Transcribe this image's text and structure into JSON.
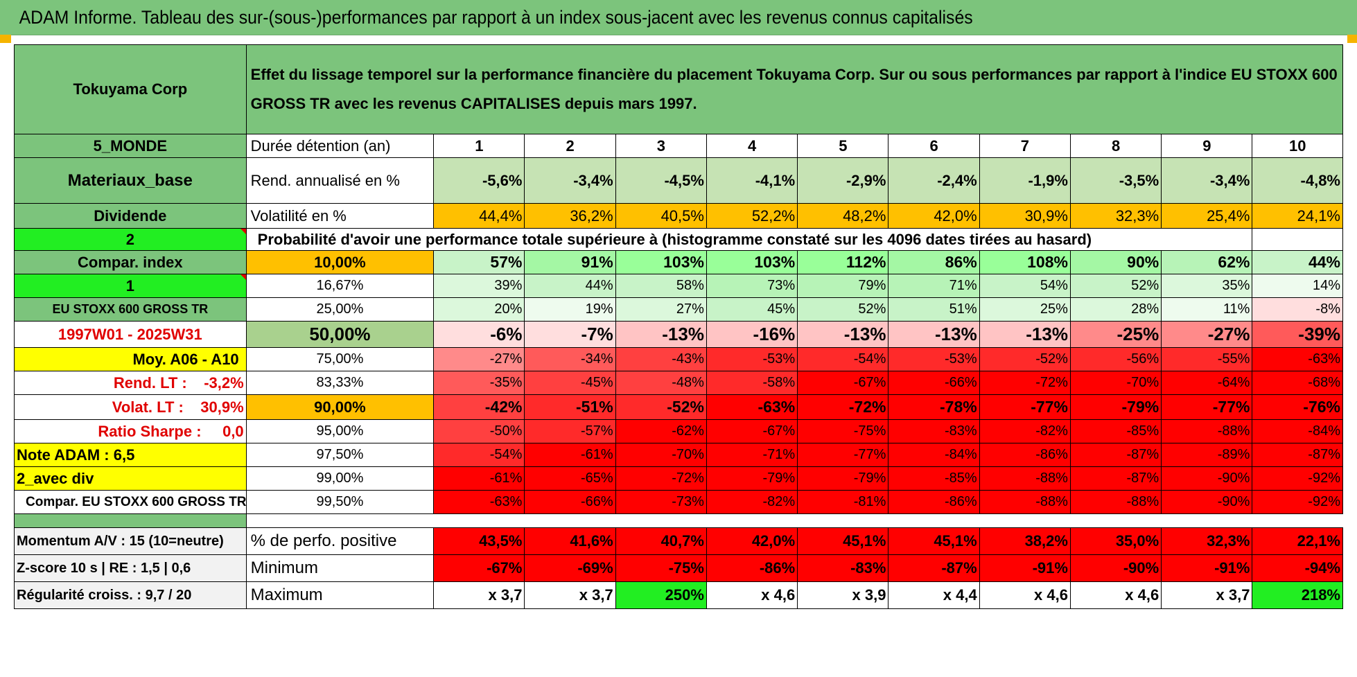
{
  "title": "ADAM Informe. Tableau des sur-(sous-)performances par rapport à un index sous-jacent avec les revenus connus capitalisés",
  "header": {
    "company": "Tokuyama Corp",
    "description": "Effet du lissage temporel sur la performance financière du placement Tokuyama Corp. Sur ou sous performances par rapport à l'indice EU STOXX 600 GROSS TR avec les revenus CAPITALISES depuis mars 1997."
  },
  "left": {
    "region": "5_MONDE",
    "sector": "Materiaux_base",
    "dividend": "Dividende",
    "code2": "2",
    "compar_index": "Compar. index",
    "code1": "1",
    "index_name": "EU STOXX 600 GROSS TR",
    "period": "1997W01 - 2025W31",
    "moy": "Moy. A06 - A10",
    "rend_lt": "Rend. LT :    -3,2%",
    "volat_lt": "Volat. LT :    30,9%",
    "sharpe": "Ratio Sharpe :     0,0",
    "note": "Note ADAM : 6,5",
    "avec_div": "2_avec div",
    "compar_eu": "Compar. EU STOXX 600 GROSS TR",
    "momentum": "Momentum A/V : 15 (10=neutre)",
    "zscore": "Z-score 10 s | RE : 1,5 | 0,6",
    "regularite": "Régularité croiss. : 9,7 / 20"
  },
  "metrics": {
    "duree": "Durée détention (an)",
    "rend": "Rend. annualisé en %",
    "volat": "Volatilité en %",
    "prob_title": "Probabilité d'avoir une performance totale supérieure à (histogramme constaté sur les 4096 dates tirées au hasard)",
    "perf_pos": "% de perfo. positive",
    "minimum": "Minimum",
    "maximum": "Maximum"
  },
  "years": [
    "1",
    "2",
    "3",
    "4",
    "5",
    "6",
    "7",
    "8",
    "9",
    "10"
  ],
  "rend": [
    "-5,6%",
    "-3,4%",
    "-4,5%",
    "-4,1%",
    "-2,9%",
    "-2,4%",
    "-1,9%",
    "-3,5%",
    "-3,4%",
    "-4,8%"
  ],
  "volat": [
    "44,4%",
    "36,2%",
    "40,5%",
    "52,2%",
    "48,2%",
    "42,0%",
    "30,9%",
    "32,3%",
    "25,4%",
    "24,1%"
  ],
  "thresholds": [
    "10,00%",
    "16,67%",
    "25,00%",
    "50,00%",
    "75,00%",
    "83,33%",
    "90,00%",
    "95,00%",
    "97,50%",
    "99,00%",
    "99,50%"
  ],
  "prob_rows": [
    [
      "57%",
      "91%",
      "103%",
      "103%",
      "112%",
      "86%",
      "108%",
      "90%",
      "62%",
      "44%"
    ],
    [
      "39%",
      "44%",
      "58%",
      "73%",
      "79%",
      "71%",
      "54%",
      "52%",
      "35%",
      "14%"
    ],
    [
      "20%",
      "19%",
      "27%",
      "45%",
      "52%",
      "51%",
      "25%",
      "28%",
      "11%",
      "-8%"
    ],
    [
      "-6%",
      "-7%",
      "-13%",
      "-16%",
      "-13%",
      "-13%",
      "-13%",
      "-25%",
      "-27%",
      "-39%"
    ],
    [
      "-27%",
      "-34%",
      "-43%",
      "-53%",
      "-54%",
      "-53%",
      "-52%",
      "-56%",
      "-55%",
      "-63%"
    ],
    [
      "-35%",
      "-45%",
      "-48%",
      "-58%",
      "-67%",
      "-66%",
      "-72%",
      "-70%",
      "-64%",
      "-68%"
    ],
    [
      "-42%",
      "-51%",
      "-52%",
      "-63%",
      "-72%",
      "-78%",
      "-77%",
      "-79%",
      "-77%",
      "-76%"
    ],
    [
      "-50%",
      "-57%",
      "-62%",
      "-67%",
      "-75%",
      "-83%",
      "-82%",
      "-85%",
      "-88%",
      "-84%"
    ],
    [
      "-54%",
      "-61%",
      "-70%",
      "-71%",
      "-77%",
      "-84%",
      "-86%",
      "-87%",
      "-89%",
      "-87%"
    ],
    [
      "-61%",
      "-65%",
      "-72%",
      "-79%",
      "-79%",
      "-85%",
      "-88%",
      "-87%",
      "-90%",
      "-92%"
    ],
    [
      "-63%",
      "-66%",
      "-73%",
      "-82%",
      "-81%",
      "-86%",
      "-88%",
      "-88%",
      "-90%",
      "-92%"
    ]
  ],
  "perf_pos": [
    "43,5%",
    "41,6%",
    "40,7%",
    "42,0%",
    "45,1%",
    "45,1%",
    "38,2%",
    "35,0%",
    "32,3%",
    "22,1%"
  ],
  "minimum": [
    "-67%",
    "-69%",
    "-75%",
    "-86%",
    "-83%",
    "-87%",
    "-91%",
    "-90%",
    "-91%",
    "-94%"
  ],
  "maximum": [
    "x 3,7",
    "x 3,7",
    "250%",
    "x 4,6",
    "x 3,9",
    "x 4,4",
    "x 4,6",
    "x 4,6",
    "x 3,7",
    "218%"
  ],
  "colors": {
    "header_green": "#7cc47c",
    "bright_green": "#22ee22",
    "highlight_yellow": "#ffff00",
    "highlight_orange": "#ffc000",
    "red": "#ff0000",
    "red_text": "#e00000"
  }
}
